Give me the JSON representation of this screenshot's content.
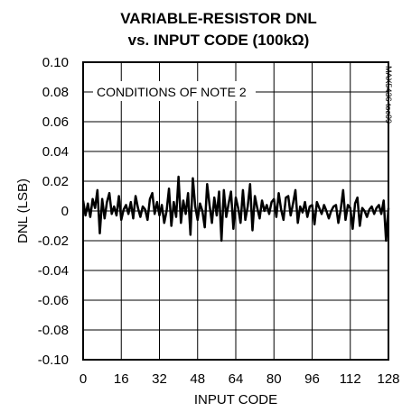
{
  "chart_data": {
    "type": "line",
    "title_line1": "VARIABLE-RESISTOR DNL",
    "title_line2": "vs. INPUT CODE (100kΩ)",
    "xlabel": "INPUT CODE",
    "ylabel": "DNL (LSB)",
    "xlim": [
      0,
      128
    ],
    "ylim": [
      -0.1,
      0.1
    ],
    "x_tick_labels": [
      "0",
      "16",
      "32",
      "48",
      "64",
      "80",
      "96",
      "112",
      "128"
    ],
    "y_tick_labels": [
      "0.10",
      "0.08",
      "0.06",
      "0.04",
      "0.02",
      "0",
      "-0.02",
      "-0.04",
      "-0.06",
      "-0.08",
      "-0.10"
    ],
    "annotation": "CONDITIONS OF NOTE 2",
    "side_label": "MAX5436 toc09",
    "grid": true,
    "line_color": "#000000",
    "series": [
      {
        "x": [
          0,
          1,
          2,
          3,
          4,
          5,
          6,
          7,
          8,
          9,
          10,
          11,
          12,
          13,
          14,
          15,
          16,
          17,
          18,
          19,
          20,
          21,
          22,
          23,
          24,
          25,
          26,
          27,
          28,
          29,
          30,
          31,
          32,
          33,
          34,
          35,
          36,
          37,
          38,
          39,
          40,
          41,
          42,
          43,
          44,
          45,
          46,
          47,
          48,
          49,
          50,
          51,
          52,
          53,
          54,
          55,
          56,
          57,
          58,
          59,
          60,
          61,
          62,
          63,
          64,
          65,
          66,
          67,
          68,
          69,
          70,
          71,
          72,
          73,
          74,
          75,
          76,
          77,
          78,
          79,
          80,
          81,
          82,
          83,
          84,
          85,
          86,
          87,
          88,
          89,
          90,
          91,
          92,
          93,
          94,
          95,
          96,
          97,
          98,
          99,
          100,
          101,
          102,
          103,
          104,
          105,
          106,
          107,
          108,
          109,
          110,
          111,
          112,
          113,
          114,
          115,
          116,
          117,
          118,
          119,
          120,
          121,
          122,
          123,
          124,
          125,
          126,
          127,
          128
        ],
        "values": [
          0.007,
          -0.003,
          0.005,
          -0.004,
          0.008,
          0.002,
          0.014,
          -0.015,
          0.008,
          -0.005,
          0.006,
          0.012,
          -0.002,
          0.003,
          -0.003,
          0.01,
          -0.006,
          0.001,
          0.004,
          -0.002,
          0.006,
          -0.005,
          0.01,
          0.002,
          -0.004,
          0.003,
          0.001,
          -0.006,
          0.008,
          0.012,
          -0.002,
          0.006,
          -0.003,
          0.004,
          -0.008,
          0.0,
          0.015,
          -0.01,
          0.006,
          -0.004,
          0.023,
          -0.008,
          0.007,
          -0.002,
          0.012,
          -0.016,
          0.022,
          0.003,
          -0.006,
          0.005,
          0.0,
          -0.011,
          0.018,
          0.004,
          -0.008,
          0.009,
          -0.003,
          0.013,
          -0.02,
          0.014,
          -0.004,
          0.005,
          0.013,
          -0.012,
          0.009,
          0.002,
          -0.008,
          0.014,
          -0.006,
          0.003,
          0.018,
          -0.013,
          0.01,
          0.002,
          -0.005,
          0.007,
          0.0,
          0.004,
          -0.002,
          0.006,
          0.008,
          -0.004,
          0.012,
          0.001,
          -0.006,
          0.009,
          0.01,
          -0.003,
          0.005,
          0.014,
          -0.008,
          0.003,
          -0.001,
          0.006,
          -0.004,
          0.003,
          0.004,
          -0.009,
          0.006,
          0.002,
          -0.002,
          0.004,
          0.0,
          -0.005,
          0.0,
          0.003,
          0.004,
          -0.008,
          0.001,
          0.014,
          -0.006,
          0.004,
          0.002,
          -0.012,
          0.005,
          0.009,
          -0.01,
          0.002,
          0.0,
          -0.004,
          0.001,
          0.003,
          -0.002,
          0.002,
          0.004,
          -0.002,
          0.007,
          -0.02,
          0.002
        ]
      }
    ]
  }
}
